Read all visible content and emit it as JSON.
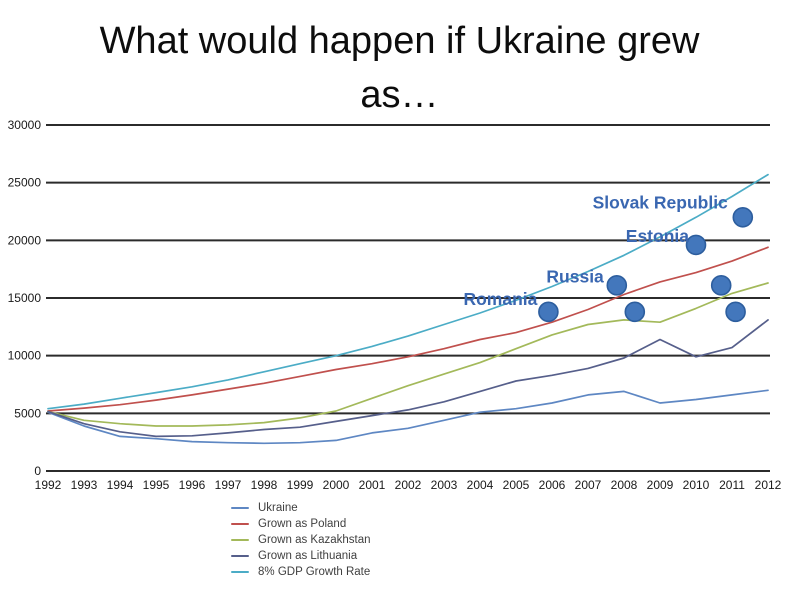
{
  "title": "What would happen if Ukraine grew as…",
  "axis": {
    "tick_color": "#1a1a1a",
    "grid_color": "#2b2b2b"
  },
  "chart_data": {
    "type": "line",
    "title": "What would happen if Ukraine grew as…",
    "xlabel": "",
    "ylabel": "",
    "x": [
      1992,
      1993,
      1994,
      1995,
      1996,
      1997,
      1998,
      1999,
      2000,
      2001,
      2002,
      2003,
      2004,
      2005,
      2006,
      2007,
      2008,
      2009,
      2010,
      2011,
      2012
    ],
    "xlim": [
      1992,
      2012
    ],
    "ylim": [
      0,
      30000
    ],
    "yticks": [
      0,
      5000,
      10000,
      15000,
      20000,
      25000,
      30000
    ],
    "grid": "horizontal",
    "legend_position": "bottom-left",
    "series": [
      {
        "name": "Ukraine",
        "color": "#5E87C3",
        "values": [
          5100,
          3900,
          3000,
          2800,
          2550,
          2450,
          2400,
          2450,
          2650,
          3300,
          3700,
          4400,
          5100,
          5400,
          5900,
          6600,
          6900,
          5900,
          6200,
          6600,
          7000
        ]
      },
      {
        "name": "Grown as Poland",
        "color": "#C0504D",
        "values": [
          5200,
          5450,
          5750,
          6150,
          6600,
          7100,
          7600,
          8200,
          8800,
          9300,
          9900,
          10600,
          11400,
          12000,
          12900,
          14000,
          15300,
          16400,
          17200,
          18200,
          19400
        ]
      },
      {
        "name": "Grown as Kazakhstan",
        "color": "#A3B95A",
        "values": [
          5150,
          4400,
          4100,
          3900,
          3900,
          4000,
          4200,
          4600,
          5200,
          6300,
          7400,
          8400,
          9400,
          10600,
          11800,
          12700,
          13100,
          12900,
          14100,
          15400,
          16300
        ]
      },
      {
        "name": "Grown as Lithuania",
        "color": "#565F8B",
        "values": [
          5150,
          4100,
          3400,
          3000,
          3050,
          3300,
          3600,
          3800,
          4300,
          4800,
          5300,
          6000,
          6900,
          7800,
          8300,
          8900,
          9800,
          11400,
          9900,
          10700,
          13100
        ]
      },
      {
        "name": "8% GDP Growth Rate",
        "color": "#4BACC6",
        "values": [
          5400,
          5800,
          6300,
          6800,
          7300,
          7900,
          8600,
          9300,
          10000,
          10800,
          11700,
          12700,
          13700,
          14800,
          16000,
          17300,
          18700,
          20300,
          22000,
          23800,
          25700
        ]
      }
    ],
    "scatter": {
      "marker_color": "#4377BC",
      "marker_border": "#2D5E9E",
      "label_color": "#3A67B1",
      "points": [
        {
          "x": 2005.9,
          "y": 13800,
          "label": "Romania",
          "label_dx": -11,
          "label_dy": -7
        },
        {
          "x": 2007.8,
          "y": 16100,
          "label": "Russia",
          "label_dx": -13,
          "label_dy": -3
        },
        {
          "x": 2008.3,
          "y": 13800,
          "label": ""
        },
        {
          "x": 2010.0,
          "y": 19600,
          "label": "Estonia",
          "label_dx": -7,
          "label_dy": -3
        },
        {
          "x": 2010.7,
          "y": 16100,
          "label": ""
        },
        {
          "x": 2011.1,
          "y": 13800,
          "label": ""
        },
        {
          "x": 2011.3,
          "y": 22000,
          "label": "Slovak Republic",
          "label_dx": -15,
          "label_dy": -9
        }
      ]
    }
  }
}
